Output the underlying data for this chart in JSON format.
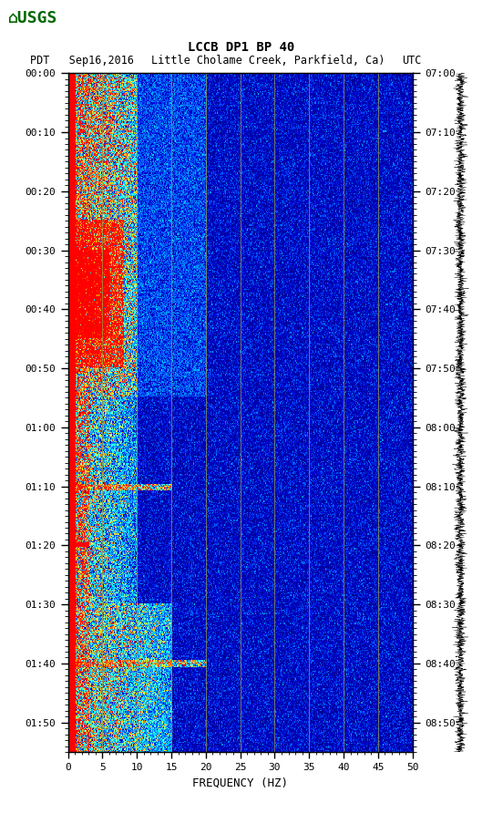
{
  "title_line1": "LCCB DP1 BP 40",
  "title_line2_left": "PDT   Sep16,2016",
  "title_line2_mid": "Little Cholame Creek, Parkfield, Ca)",
  "title_line2_right": "UTC",
  "left_time_labels": [
    "00:00",
    "00:10",
    "00:20",
    "00:30",
    "00:40",
    "00:50",
    "01:00",
    "01:10",
    "01:20",
    "01:30",
    "01:40",
    "01:50"
  ],
  "right_time_labels": [
    "07:00",
    "07:10",
    "07:20",
    "07:30",
    "07:40",
    "07:50",
    "08:00",
    "08:10",
    "08:20",
    "08:30",
    "08:40",
    "08:50"
  ],
  "freq_ticks": [
    0,
    5,
    10,
    15,
    20,
    25,
    30,
    35,
    40,
    45,
    50
  ],
  "freq_label": "FREQUENCY (HZ)",
  "xlim": [
    0,
    50
  ],
  "figsize": [
    5.52,
    8.92
  ],
  "dpi": 100,
  "grid_freq_lines": [
    5,
    10,
    15,
    20,
    25,
    30,
    35,
    40,
    45
  ],
  "time_minutes": [
    0,
    10,
    20,
    30,
    40,
    50,
    60,
    70,
    80,
    90,
    100,
    110
  ],
  "total_minutes": 115,
  "cmap_colors": [
    [
      0.0,
      "#00007F"
    ],
    [
      0.1,
      "#0000CD"
    ],
    [
      0.2,
      "#0055FF"
    ],
    [
      0.35,
      "#00AAFF"
    ],
    [
      0.5,
      "#00FFFF"
    ],
    [
      0.62,
      "#AAFFAA"
    ],
    [
      0.68,
      "#FFFF00"
    ],
    [
      0.78,
      "#FF8800"
    ],
    [
      0.88,
      "#FF3300"
    ],
    [
      1.0,
      "#FF0000"
    ]
  ]
}
